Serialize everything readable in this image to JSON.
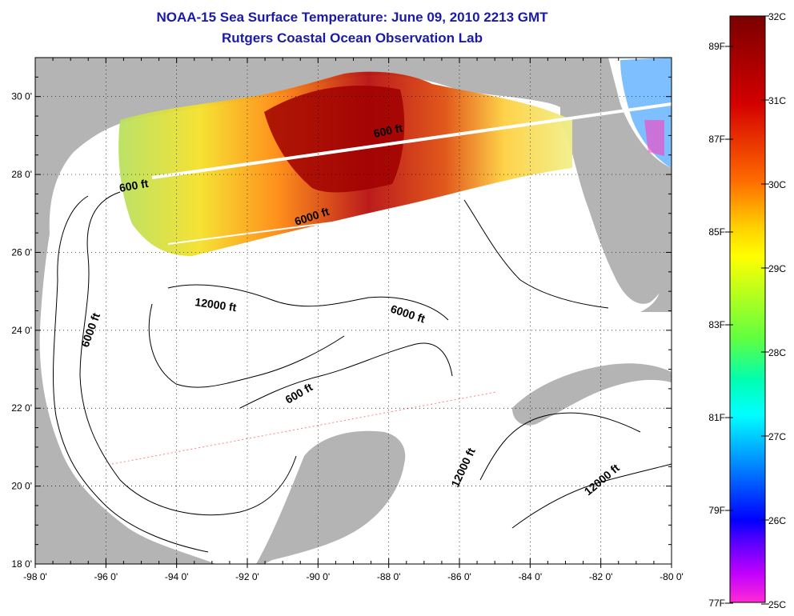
{
  "title": "NOAA-15 Sea Surface Temperature:  June 09, 2010 2213 GMT",
  "subtitle": "Rutgers Coastal Ocean Observation Lab",
  "map": {
    "lon_range": [
      -98,
      -80
    ],
    "lat_range": [
      18,
      31
    ],
    "lon_ticks": [
      "-98 0'",
      "-96 0'",
      "-94 0'",
      "-92 0'",
      "-90 0'",
      "-88 0'",
      "-86 0'",
      "-84 0'",
      "-82 0'",
      "-80 0'"
    ],
    "lat_ticks": [
      "18 0'",
      "20 0'",
      "22 0'",
      "24 0'",
      "26 0'",
      "28 0'",
      "30 0'"
    ],
    "grid": "dotted",
    "land_color": "#b4b4b4",
    "ocean_color": "#ffffff"
  },
  "contour_labels": [
    {
      "text": "600 ft"
    },
    {
      "text": "600 ft"
    },
    {
      "text": "600 ft"
    },
    {
      "text": "6000 ft"
    },
    {
      "text": "6000 ft"
    },
    {
      "text": "6000 ft"
    },
    {
      "text": "12000 ft"
    },
    {
      "text": "12000 ft"
    },
    {
      "text": "12000 ft"
    }
  ],
  "colorbar": {
    "celsius": [
      "32C",
      "31C",
      "30C",
      "29C",
      "28C",
      "27C",
      "26C",
      "25C"
    ],
    "fahrenheit": [
      "89F",
      "87F",
      "85F",
      "83F",
      "81F",
      "79F",
      "77F"
    ],
    "colors": [
      "#800000",
      "#c00000",
      "#ff0000",
      "#ff8000",
      "#ffff00",
      "#80ff00",
      "#00ff80",
      "#00ffff",
      "#0080ff",
      "#0000ff",
      "#ff00ff"
    ]
  }
}
